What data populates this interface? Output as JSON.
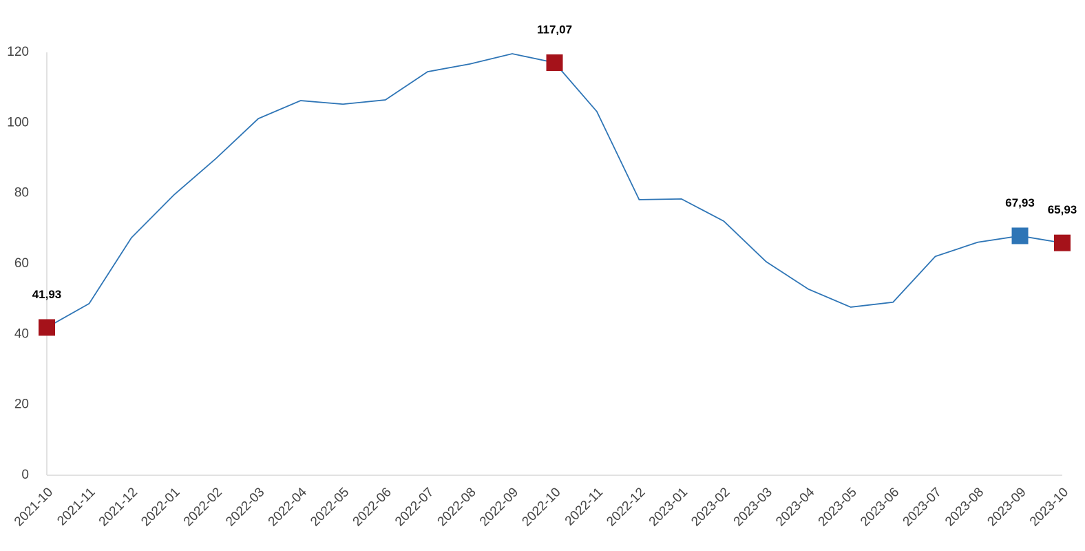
{
  "chart_data": {
    "type": "line",
    "categories": [
      "2021-10",
      "2021-11",
      "2021-12",
      "2022-01",
      "2022-02",
      "2022-03",
      "2022-04",
      "2022-05",
      "2022-06",
      "2022-07",
      "2022-08",
      "2022-09",
      "2022-10",
      "2022-11",
      "2022-12",
      "2023-01",
      "2023-02",
      "2023-03",
      "2023-04",
      "2023-05",
      "2023-06",
      "2023-07",
      "2023-08",
      "2023-09",
      "2023-10"
    ],
    "values": [
      41.93,
      48.7,
      67.4,
      79.5,
      89.9,
      101.2,
      106.3,
      105.3,
      106.5,
      114.5,
      116.7,
      119.6,
      117.07,
      103.2,
      78.2,
      78.4,
      72.1,
      60.6,
      52.8,
      47.7,
      49.1,
      62.1,
      66.1,
      67.93,
      65.93
    ],
    "value_labels": [
      "41,93",
      null,
      null,
      null,
      null,
      null,
      null,
      null,
      null,
      null,
      null,
      null,
      "117,07",
      null,
      null,
      null,
      null,
      null,
      null,
      null,
      null,
      null,
      null,
      "67,93",
      "65,93"
    ],
    "marker_colors": [
      "#a5121a",
      null,
      null,
      null,
      null,
      null,
      null,
      null,
      null,
      null,
      null,
      null,
      "#a5121a",
      null,
      null,
      null,
      null,
      null,
      null,
      null,
      null,
      null,
      null,
      "#2e75b6",
      "#a5121a"
    ],
    "color": "#2e75b6",
    "ylim": [
      0,
      120
    ],
    "yticks": [
      0,
      20,
      40,
      60,
      80,
      100,
      120
    ],
    "grid": false
  }
}
